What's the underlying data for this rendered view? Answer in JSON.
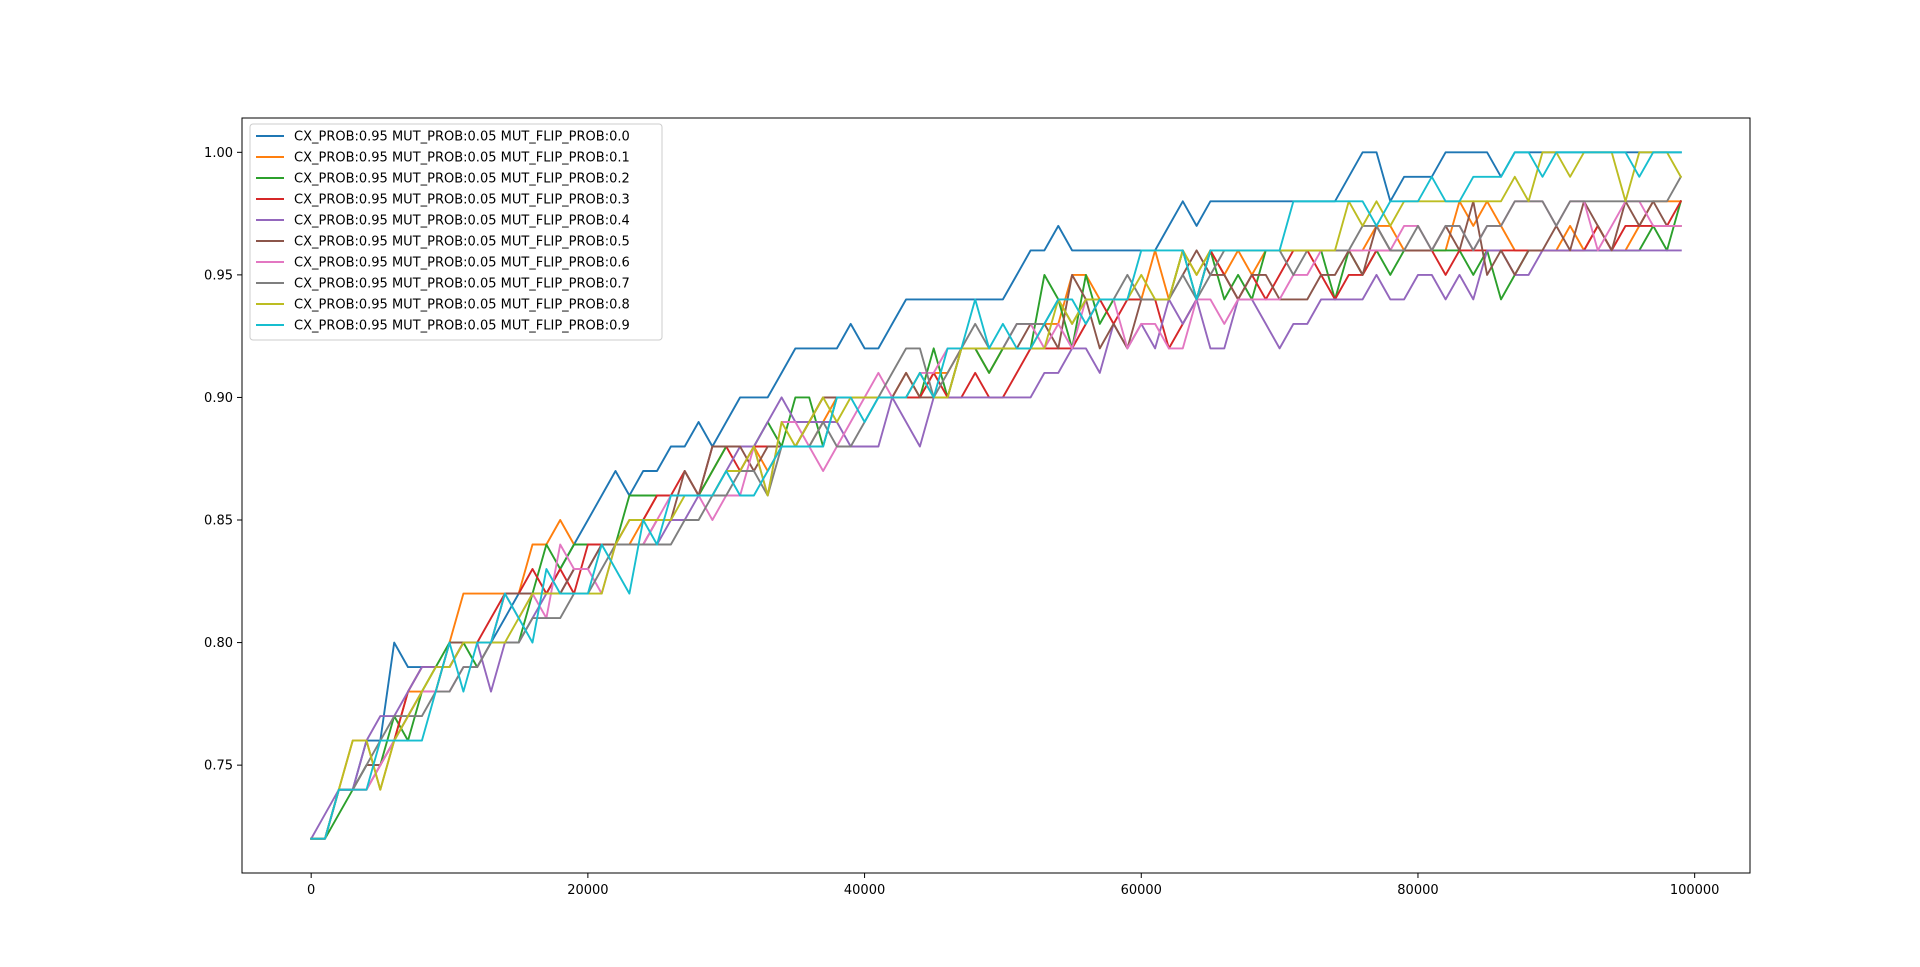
{
  "chart_data": {
    "type": "line",
    "title": "",
    "xlabel": "",
    "ylabel": "",
    "xlim": [
      -5000,
      104000
    ],
    "ylim": [
      0.706,
      1.014
    ],
    "xticks": [
      0,
      20000,
      40000,
      60000,
      80000,
      100000
    ],
    "xtick_labels": [
      "0",
      "20000",
      "40000",
      "60000",
      "80000",
      "100000"
    ],
    "yticks": [
      0.75,
      0.8,
      0.85,
      0.9,
      0.95,
      1.0
    ],
    "ytick_labels": [
      "0.75",
      "0.80",
      "0.85",
      "0.90",
      "0.95",
      "1.00"
    ],
    "grid": false,
    "legend_position": "upper-left",
    "x": [
      0,
      1000,
      2000,
      3000,
      4000,
      5000,
      6000,
      7000,
      8000,
      9000,
      10000,
      11000,
      12000,
      13000,
      14000,
      15000,
      16000,
      17000,
      18000,
      19000,
      20000,
      21000,
      22000,
      23000,
      24000,
      25000,
      26000,
      27000,
      28000,
      29000,
      30000,
      31000,
      32000,
      33000,
      34000,
      35000,
      36000,
      37000,
      38000,
      39000,
      40000,
      41000,
      42000,
      43000,
      44000,
      45000,
      46000,
      47000,
      48000,
      49000,
      50000,
      51000,
      52000,
      53000,
      54000,
      55000,
      56000,
      57000,
      58000,
      59000,
      60000,
      61000,
      62000,
      63000,
      64000,
      65000,
      66000,
      67000,
      68000,
      69000,
      70000,
      71000,
      72000,
      73000,
      74000,
      75000,
      76000,
      77000,
      78000,
      79000,
      80000,
      81000,
      82000,
      83000,
      84000,
      85000,
      86000,
      87000,
      88000,
      89000,
      90000,
      91000,
      92000,
      93000,
      94000,
      95000,
      96000,
      97000,
      98000,
      99000
    ],
    "series": [
      {
        "name": "CX_PROB:0.95 MUT_PROB:0.05 MUT_FLIP_PROB:0.0",
        "color": "#1f77b4",
        "values": [
          0.72,
          0.72,
          0.74,
          0.74,
          0.76,
          0.76,
          0.8,
          0.79,
          0.79,
          0.79,
          0.79,
          0.8,
          0.8,
          0.8,
          0.81,
          0.82,
          0.82,
          0.82,
          0.83,
          0.84,
          0.85,
          0.86,
          0.87,
          0.86,
          0.87,
          0.87,
          0.88,
          0.88,
          0.89,
          0.88,
          0.89,
          0.9,
          0.9,
          0.9,
          0.91,
          0.92,
          0.92,
          0.92,
          0.92,
          0.93,
          0.92,
          0.92,
          0.93,
          0.94,
          0.94,
          0.94,
          0.94,
          0.94,
          0.94,
          0.94,
          0.94,
          0.95,
          0.96,
          0.96,
          0.97,
          0.96,
          0.96,
          0.96,
          0.96,
          0.96,
          0.96,
          0.96,
          0.97,
          0.98,
          0.97,
          0.98,
          0.98,
          0.98,
          0.98,
          0.98,
          0.98,
          0.98,
          0.98,
          0.98,
          0.98,
          0.99,
          1.0,
          1.0,
          0.98,
          0.99,
          0.99,
          0.99,
          1.0,
          1.0,
          1.0,
          1.0,
          0.99,
          1.0,
          1.0,
          1.0,
          1.0,
          1.0,
          1.0,
          1.0,
          1.0,
          1.0,
          1.0,
          1.0,
          1.0,
          1.0
        ]
      },
      {
        "name": "CX_PROB:0.95 MUT_PROB:0.05 MUT_FLIP_PROB:0.1",
        "color": "#ff7f0e",
        "values": [
          0.72,
          0.72,
          0.74,
          0.76,
          0.76,
          0.74,
          0.76,
          0.78,
          0.78,
          0.78,
          0.8,
          0.82,
          0.82,
          0.82,
          0.82,
          0.82,
          0.84,
          0.84,
          0.85,
          0.84,
          0.84,
          0.84,
          0.84,
          0.84,
          0.85,
          0.86,
          0.86,
          0.86,
          0.86,
          0.87,
          0.88,
          0.88,
          0.88,
          0.87,
          0.88,
          0.88,
          0.88,
          0.89,
          0.9,
          0.9,
          0.9,
          0.9,
          0.9,
          0.91,
          0.9,
          0.91,
          0.91,
          0.92,
          0.92,
          0.91,
          0.92,
          0.92,
          0.92,
          0.93,
          0.93,
          0.95,
          0.95,
          0.94,
          0.94,
          0.94,
          0.94,
          0.96,
          0.94,
          0.96,
          0.95,
          0.96,
          0.95,
          0.96,
          0.95,
          0.96,
          0.96,
          0.96,
          0.96,
          0.96,
          0.96,
          0.96,
          0.96,
          0.97,
          0.97,
          0.96,
          0.96,
          0.96,
          0.96,
          0.98,
          0.97,
          0.98,
          0.97,
          0.96,
          0.96,
          0.96,
          0.96,
          0.97,
          0.96,
          0.97,
          0.96,
          0.96,
          0.97,
          0.98,
          0.98,
          0.98
        ]
      },
      {
        "name": "CX_PROB:0.95 MUT_PROB:0.05 MUT_FLIP_PROB:0.2",
        "color": "#2ca02c",
        "values": [
          0.72,
          0.72,
          0.73,
          0.74,
          0.75,
          0.75,
          0.77,
          0.76,
          0.78,
          0.79,
          0.8,
          0.8,
          0.79,
          0.8,
          0.8,
          0.8,
          0.82,
          0.84,
          0.83,
          0.84,
          0.84,
          0.84,
          0.84,
          0.86,
          0.86,
          0.86,
          0.86,
          0.86,
          0.86,
          0.87,
          0.88,
          0.88,
          0.88,
          0.89,
          0.88,
          0.9,
          0.9,
          0.88,
          0.9,
          0.9,
          0.9,
          0.9,
          0.9,
          0.9,
          0.9,
          0.92,
          0.9,
          0.92,
          0.92,
          0.91,
          0.92,
          0.92,
          0.92,
          0.95,
          0.94,
          0.92,
          0.95,
          0.93,
          0.94,
          0.94,
          0.94,
          0.94,
          0.94,
          0.96,
          0.94,
          0.96,
          0.94,
          0.95,
          0.94,
          0.96,
          0.96,
          0.96,
          0.96,
          0.96,
          0.94,
          0.96,
          0.95,
          0.96,
          0.95,
          0.96,
          0.96,
          0.96,
          0.96,
          0.96,
          0.95,
          0.96,
          0.94,
          0.95,
          0.96,
          0.96,
          0.96,
          0.96,
          0.96,
          0.96,
          0.96,
          0.96,
          0.96,
          0.97,
          0.96,
          0.98
        ]
      },
      {
        "name": "CX_PROB:0.95 MUT_PROB:0.05 MUT_FLIP_PROB:0.3",
        "color": "#d62728",
        "values": [
          0.72,
          0.72,
          0.74,
          0.74,
          0.74,
          0.75,
          0.76,
          0.78,
          0.79,
          0.79,
          0.79,
          0.8,
          0.8,
          0.81,
          0.82,
          0.82,
          0.83,
          0.82,
          0.83,
          0.82,
          0.84,
          0.84,
          0.84,
          0.85,
          0.85,
          0.86,
          0.86,
          0.87,
          0.86,
          0.88,
          0.88,
          0.87,
          0.88,
          0.88,
          0.88,
          0.88,
          0.89,
          0.9,
          0.9,
          0.9,
          0.9,
          0.9,
          0.9,
          0.9,
          0.9,
          0.91,
          0.9,
          0.9,
          0.91,
          0.9,
          0.9,
          0.91,
          0.92,
          0.92,
          0.92,
          0.92,
          0.93,
          0.94,
          0.93,
          0.94,
          0.94,
          0.94,
          0.92,
          0.93,
          0.94,
          0.96,
          0.95,
          0.94,
          0.95,
          0.94,
          0.95,
          0.96,
          0.96,
          0.95,
          0.94,
          0.95,
          0.95,
          0.96,
          0.96,
          0.96,
          0.96,
          0.96,
          0.95,
          0.96,
          0.96,
          0.96,
          0.96,
          0.96,
          0.96,
          0.96,
          0.96,
          0.96,
          0.96,
          0.97,
          0.96,
          0.97,
          0.97,
          0.97,
          0.97,
          0.98
        ]
      },
      {
        "name": "CX_PROB:0.95 MUT_PROB:0.05 MUT_FLIP_PROB:0.4",
        "color": "#9467bd",
        "values": [
          0.72,
          0.73,
          0.74,
          0.74,
          0.76,
          0.77,
          0.77,
          0.78,
          0.79,
          0.79,
          0.79,
          0.8,
          0.8,
          0.78,
          0.8,
          0.8,
          0.81,
          0.82,
          0.82,
          0.83,
          0.83,
          0.84,
          0.84,
          0.84,
          0.84,
          0.84,
          0.85,
          0.85,
          0.86,
          0.86,
          0.87,
          0.88,
          0.88,
          0.89,
          0.9,
          0.89,
          0.89,
          0.89,
          0.89,
          0.88,
          0.88,
          0.88,
          0.9,
          0.89,
          0.88,
          0.9,
          0.9,
          0.9,
          0.9,
          0.9,
          0.9,
          0.9,
          0.9,
          0.91,
          0.91,
          0.92,
          0.92,
          0.91,
          0.93,
          0.92,
          0.93,
          0.92,
          0.94,
          0.93,
          0.94,
          0.92,
          0.92,
          0.94,
          0.94,
          0.93,
          0.92,
          0.93,
          0.93,
          0.94,
          0.94,
          0.94,
          0.94,
          0.95,
          0.94,
          0.94,
          0.95,
          0.95,
          0.94,
          0.95,
          0.94,
          0.96,
          0.96,
          0.95,
          0.95,
          0.96,
          0.96,
          0.96,
          0.96,
          0.96,
          0.96,
          0.96,
          0.96,
          0.96,
          0.96,
          0.96
        ]
      },
      {
        "name": "CX_PROB:0.95 MUT_PROB:0.05 MUT_FLIP_PROB:0.5",
        "color": "#8c564b",
        "values": [
          0.72,
          0.72,
          0.74,
          0.74,
          0.75,
          0.75,
          0.76,
          0.77,
          0.78,
          0.78,
          0.8,
          0.8,
          0.8,
          0.8,
          0.82,
          0.82,
          0.82,
          0.82,
          0.82,
          0.83,
          0.83,
          0.84,
          0.84,
          0.84,
          0.84,
          0.85,
          0.85,
          0.87,
          0.86,
          0.88,
          0.88,
          0.88,
          0.87,
          0.88,
          0.88,
          0.88,
          0.89,
          0.9,
          0.9,
          0.9,
          0.9,
          0.9,
          0.9,
          0.91,
          0.9,
          0.9,
          0.9,
          0.92,
          0.92,
          0.92,
          0.92,
          0.92,
          0.93,
          0.93,
          0.92,
          0.95,
          0.94,
          0.92,
          0.93,
          0.92,
          0.94,
          0.94,
          0.94,
          0.95,
          0.96,
          0.95,
          0.95,
          0.94,
          0.95,
          0.95,
          0.94,
          0.94,
          0.94,
          0.95,
          0.95,
          0.96,
          0.95,
          0.97,
          0.96,
          0.96,
          0.96,
          0.96,
          0.97,
          0.96,
          0.98,
          0.95,
          0.96,
          0.95,
          0.96,
          0.96,
          0.97,
          0.96,
          0.98,
          0.97,
          0.96,
          0.98,
          0.97,
          0.98,
          0.97,
          0.97
        ]
      },
      {
        "name": "CX_PROB:0.95 MUT_PROB:0.05 MUT_FLIP_PROB:0.6",
        "color": "#e377c2",
        "values": [
          0.72,
          0.72,
          0.74,
          0.74,
          0.74,
          0.75,
          0.76,
          0.77,
          0.78,
          0.78,
          0.78,
          0.79,
          0.79,
          0.8,
          0.82,
          0.81,
          0.82,
          0.81,
          0.84,
          0.83,
          0.83,
          0.82,
          0.84,
          0.84,
          0.84,
          0.85,
          0.86,
          0.86,
          0.86,
          0.85,
          0.86,
          0.86,
          0.88,
          0.86,
          0.89,
          0.89,
          0.88,
          0.87,
          0.88,
          0.89,
          0.9,
          0.91,
          0.9,
          0.9,
          0.91,
          0.91,
          0.92,
          0.92,
          0.92,
          0.92,
          0.92,
          0.93,
          0.93,
          0.92,
          0.93,
          0.92,
          0.94,
          0.94,
          0.94,
          0.92,
          0.93,
          0.93,
          0.92,
          0.92,
          0.94,
          0.94,
          0.93,
          0.94,
          0.94,
          0.94,
          0.94,
          0.95,
          0.95,
          0.96,
          0.96,
          0.96,
          0.96,
          0.96,
          0.96,
          0.97,
          0.97,
          0.96,
          0.97,
          0.97,
          0.96,
          0.97,
          0.97,
          0.98,
          0.98,
          0.98,
          0.97,
          0.98,
          0.98,
          0.96,
          0.97,
          0.98,
          0.98,
          0.97,
          0.97,
          0.97
        ]
      },
      {
        "name": "CX_PROB:0.95 MUT_PROB:0.05 MUT_FLIP_PROB:0.7",
        "color": "#7f7f7f",
        "values": [
          0.72,
          0.72,
          0.74,
          0.74,
          0.75,
          0.76,
          0.77,
          0.77,
          0.77,
          0.78,
          0.78,
          0.79,
          0.79,
          0.8,
          0.8,
          0.8,
          0.81,
          0.81,
          0.81,
          0.82,
          0.82,
          0.83,
          0.84,
          0.84,
          0.84,
          0.84,
          0.84,
          0.85,
          0.85,
          0.86,
          0.86,
          0.87,
          0.87,
          0.86,
          0.88,
          0.88,
          0.88,
          0.89,
          0.88,
          0.88,
          0.89,
          0.9,
          0.91,
          0.92,
          0.92,
          0.9,
          0.91,
          0.92,
          0.93,
          0.92,
          0.92,
          0.93,
          0.93,
          0.93,
          0.94,
          0.93,
          0.94,
          0.94,
          0.94,
          0.95,
          0.94,
          0.94,
          0.94,
          0.95,
          0.94,
          0.95,
          0.96,
          0.96,
          0.96,
          0.96,
          0.96,
          0.95,
          0.96,
          0.96,
          0.96,
          0.96,
          0.97,
          0.97,
          0.96,
          0.96,
          0.97,
          0.96,
          0.97,
          0.97,
          0.96,
          0.97,
          0.97,
          0.98,
          0.98,
          0.98,
          0.97,
          0.98,
          0.98,
          0.98,
          0.98,
          0.98,
          0.98,
          0.98,
          0.98,
          0.99
        ]
      },
      {
        "name": "CX_PROB:0.95 MUT_PROB:0.05 MUT_FLIP_PROB:0.8",
        "color": "#bcbd22",
        "values": [
          0.72,
          0.72,
          0.74,
          0.76,
          0.76,
          0.74,
          0.76,
          0.77,
          0.78,
          0.79,
          0.79,
          0.8,
          0.8,
          0.8,
          0.8,
          0.81,
          0.82,
          0.82,
          0.82,
          0.82,
          0.82,
          0.82,
          0.84,
          0.85,
          0.85,
          0.85,
          0.85,
          0.86,
          0.86,
          0.86,
          0.87,
          0.87,
          0.88,
          0.86,
          0.89,
          0.88,
          0.89,
          0.9,
          0.89,
          0.9,
          0.9,
          0.9,
          0.9,
          0.9,
          0.91,
          0.9,
          0.9,
          0.92,
          0.92,
          0.92,
          0.92,
          0.92,
          0.92,
          0.92,
          0.94,
          0.93,
          0.94,
          0.94,
          0.94,
          0.94,
          0.95,
          0.94,
          0.94,
          0.96,
          0.95,
          0.96,
          0.96,
          0.96,
          0.96,
          0.96,
          0.96,
          0.96,
          0.96,
          0.96,
          0.96,
          0.98,
          0.97,
          0.98,
          0.97,
          0.98,
          0.98,
          0.98,
          0.98,
          0.98,
          0.98,
          0.98,
          0.98,
          0.99,
          0.98,
          1.0,
          1.0,
          0.99,
          1.0,
          1.0,
          1.0,
          0.98,
          1.0,
          1.0,
          1.0,
          0.99
        ]
      },
      {
        "name": "CX_PROB:0.95 MUT_PROB:0.05 MUT_FLIP_PROB:0.9",
        "color": "#17becf",
        "values": [
          0.72,
          0.72,
          0.74,
          0.74,
          0.74,
          0.76,
          0.76,
          0.76,
          0.76,
          0.78,
          0.8,
          0.78,
          0.8,
          0.8,
          0.82,
          0.81,
          0.8,
          0.83,
          0.82,
          0.82,
          0.82,
          0.84,
          0.83,
          0.82,
          0.85,
          0.84,
          0.86,
          0.86,
          0.86,
          0.86,
          0.87,
          0.86,
          0.86,
          0.87,
          0.88,
          0.88,
          0.88,
          0.88,
          0.9,
          0.9,
          0.89,
          0.9,
          0.9,
          0.9,
          0.91,
          0.9,
          0.92,
          0.92,
          0.94,
          0.92,
          0.93,
          0.92,
          0.92,
          0.93,
          0.94,
          0.94,
          0.93,
          0.94,
          0.94,
          0.94,
          0.96,
          0.96,
          0.96,
          0.96,
          0.94,
          0.96,
          0.96,
          0.96,
          0.96,
          0.96,
          0.96,
          0.98,
          0.98,
          0.98,
          0.98,
          0.98,
          0.98,
          0.97,
          0.98,
          0.98,
          0.98,
          0.99,
          0.98,
          0.98,
          0.99,
          0.99,
          0.99,
          1.0,
          1.0,
          0.99,
          1.0,
          1.0,
          1.0,
          1.0,
          1.0,
          1.0,
          0.99,
          1.0,
          1.0,
          1.0
        ]
      }
    ]
  }
}
